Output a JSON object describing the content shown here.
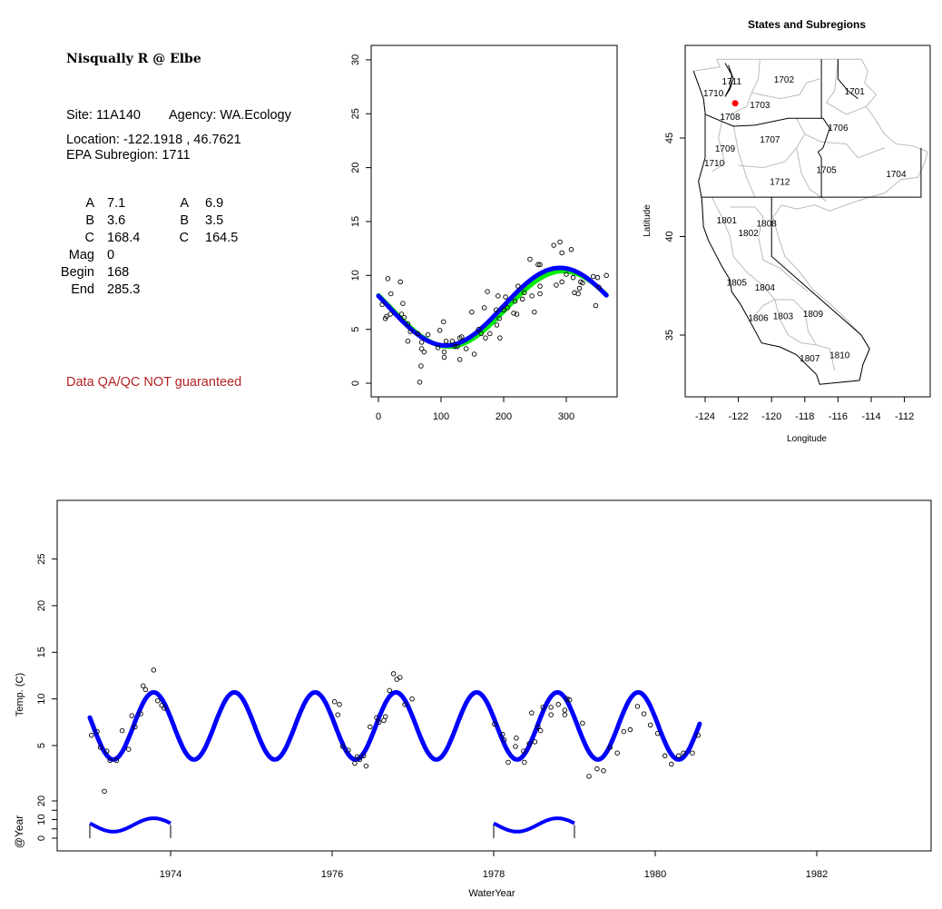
{
  "info": {
    "station_title": "Nisqually R @ Elbe",
    "site": "Site: 11A140",
    "agency": "Agency: WA.Ecology",
    "location": "Location: -122.1918 , 46.7621",
    "epa_subregion": "EPA Subregion: 1711",
    "params_left": [
      {
        "label": "A",
        "value": "7.1"
      },
      {
        "label": "B",
        "value": "3.6"
      },
      {
        "label": "C",
        "value": "168.4"
      },
      {
        "label": "Mag",
        "value": "0"
      },
      {
        "label": "Begin",
        "value": "168"
      },
      {
        "label": "End",
        "value": "285.3"
      }
    ],
    "params_right": [
      {
        "label": "A",
        "value": "6.9"
      },
      {
        "label": "B",
        "value": "3.5"
      },
      {
        "label": "C",
        "value": "164.5"
      }
    ],
    "disclaimer": "Data QA/QC NOT guaranteed",
    "disclaimer_color": "#b22222"
  },
  "chart_data": [
    {
      "id": "annual",
      "type": "scatter",
      "title": "",
      "xlabel": "",
      "ylabel": "",
      "xlim": [
        -12,
        370
      ],
      "ylim": [
        -1,
        31
      ],
      "xticks": [
        "0",
        "100",
        "200",
        "300"
      ],
      "yticks": [
        "0",
        "5",
        "10",
        "15",
        "20",
        "25",
        "30"
      ],
      "fits": [
        {
          "name": "green-fit",
          "color": "#00ee00",
          "mean": 6.9,
          "amplitude": 3.5,
          "peak_day": 295
        },
        {
          "name": "blue-fit",
          "color": "#0000ff",
          "mean": 7.1,
          "amplitude": 3.6,
          "peak_day": 290
        }
      ],
      "points": [
        [
          6,
          7.3
        ],
        [
          11,
          6.0
        ],
        [
          15,
          9.7
        ],
        [
          13,
          6.2
        ],
        [
          20,
          8.3
        ],
        [
          19,
          6.4
        ],
        [
          35,
          9.4
        ],
        [
          39,
          7.4
        ],
        [
          37,
          6.4
        ],
        [
          41,
          6.1
        ],
        [
          47,
          3.9
        ],
        [
          47,
          5.5
        ],
        [
          51,
          4.8
        ],
        [
          63,
          4.6
        ],
        [
          66,
          0.1
        ],
        [
          68,
          1.6
        ],
        [
          69,
          3.2
        ],
        [
          69,
          3.8
        ],
        [
          73,
          2.9
        ],
        [
          79,
          4.5
        ],
        [
          95,
          3.3
        ],
        [
          98,
          4.9
        ],
        [
          104,
          5.7
        ],
        [
          105,
          2.9
        ],
        [
          105,
          2.4
        ],
        [
          108,
          3.9
        ],
        [
          118,
          3.9
        ],
        [
          122,
          3.4
        ],
        [
          126,
          3.4
        ],
        [
          130,
          2.2
        ],
        [
          130,
          4.2
        ],
        [
          133,
          4.3
        ],
        [
          140,
          3.2
        ],
        [
          149,
          6.6
        ],
        [
          153,
          2.7
        ],
        [
          160,
          5.0
        ],
        [
          164,
          4.6
        ],
        [
          169,
          7.0
        ],
        [
          171,
          4.2
        ],
        [
          174,
          8.5
        ],
        [
          178,
          4.6
        ],
        [
          188,
          6.8
        ],
        [
          189,
          5.4
        ],
        [
          191,
          8.1
        ],
        [
          193,
          6.0
        ],
        [
          194,
          4.2
        ],
        [
          200,
          6.8
        ],
        [
          203,
          8.0
        ],
        [
          206,
          7.0
        ],
        [
          216,
          6.5
        ],
        [
          218,
          7.6
        ],
        [
          221,
          6.4
        ],
        [
          223,
          9.0
        ],
        [
          230,
          7.8
        ],
        [
          233,
          8.4
        ],
        [
          242,
          11.5
        ],
        [
          245,
          8.1
        ],
        [
          249,
          6.6
        ],
        [
          255,
          11.0
        ],
        [
          258,
          11.0
        ],
        [
          258,
          9.0
        ],
        [
          258,
          8.3
        ],
        [
          280,
          12.8
        ],
        [
          284,
          9.1
        ],
        [
          290,
          13.1
        ],
        [
          293,
          12.1
        ],
        [
          293,
          9.4
        ],
        [
          300,
          10.1
        ],
        [
          308,
          12.4
        ],
        [
          311,
          9.8
        ],
        [
          313,
          8.4
        ],
        [
          319,
          8.3
        ],
        [
          321,
          8.8
        ],
        [
          323,
          9.4
        ],
        [
          326,
          9.3
        ],
        [
          343,
          9.9
        ],
        [
          347,
          7.2
        ],
        [
          350,
          9.8
        ],
        [
          352,
          8.9
        ],
        [
          364,
          10.0
        ]
      ]
    },
    {
      "id": "timeseries",
      "type": "scatter",
      "title": "",
      "xlabel": "WaterYear",
      "ylabel": "Temp. (C)",
      "ylabel_inset": "@Year",
      "xticks": [
        "1974",
        "1976",
        "1978",
        "1980",
        "1982"
      ],
      "yticks": [
        "5",
        "10",
        "15",
        "20",
        "25"
      ],
      "inset_yticks": [
        "0",
        "10",
        "20"
      ],
      "fit": {
        "color": "#0000ff",
        "mean": 7.1,
        "amplitude": 3.6,
        "peak_phase": 0.79,
        "start": 1973.0,
        "end": 1980.55
      },
      "inset_years": [
        [
          1973,
          1974
        ],
        [
          1978,
          1979
        ]
      ],
      "points": [
        [
          1973.02,
          6.1
        ],
        [
          1973.09,
          6.5
        ],
        [
          1973.13,
          4.8
        ],
        [
          1973.21,
          4.4
        ],
        [
          1973.18,
          0.1
        ],
        [
          1973.25,
          3.4
        ],
        [
          1973.33,
          3.4
        ],
        [
          1973.4,
          6.6
        ],
        [
          1973.48,
          4.6
        ],
        [
          1973.52,
          8.2
        ],
        [
          1973.56,
          7.0
        ],
        [
          1973.63,
          8.4
        ],
        [
          1973.66,
          11.4
        ],
        [
          1973.69,
          11.0
        ],
        [
          1973.79,
          13.1
        ],
        [
          1973.84,
          9.8
        ],
        [
          1973.89,
          9.3
        ],
        [
          1973.92,
          9.0
        ],
        [
          1976.03,
          9.7
        ],
        [
          1976.07,
          8.3
        ],
        [
          1976.09,
          9.4
        ],
        [
          1976.13,
          4.9
        ],
        [
          1976.2,
          4.5
        ],
        [
          1976.28,
          3.1
        ],
        [
          1976.31,
          3.8
        ],
        [
          1976.34,
          3.5
        ],
        [
          1976.39,
          3.9
        ],
        [
          1976.42,
          2.8
        ],
        [
          1976.47,
          7.0
        ],
        [
          1976.55,
          8.0
        ],
        [
          1976.58,
          7.5
        ],
        [
          1976.64,
          7.7
        ],
        [
          1976.66,
          8.1
        ],
        [
          1976.71,
          10.9
        ],
        [
          1976.76,
          12.7
        ],
        [
          1976.8,
          12.1
        ],
        [
          1976.84,
          12.3
        ],
        [
          1976.9,
          9.4
        ],
        [
          1976.99,
          10.0
        ],
        [
          1978.01,
          7.3
        ],
        [
          1978.11,
          6.2
        ],
        [
          1978.13,
          5.6
        ],
        [
          1978.18,
          3.2
        ],
        [
          1978.27,
          4.9
        ],
        [
          1978.28,
          5.8
        ],
        [
          1978.37,
          4.4
        ],
        [
          1978.38,
          3.2
        ],
        [
          1978.44,
          5.2
        ],
        [
          1978.47,
          8.5
        ],
        [
          1978.51,
          5.4
        ],
        [
          1978.55,
          7.0
        ],
        [
          1978.58,
          6.6
        ],
        [
          1978.61,
          9.1
        ],
        [
          1978.71,
          9.1
        ],
        [
          1978.71,
          8.3
        ],
        [
          1978.8,
          9.4
        ],
        [
          1978.88,
          8.3
        ],
        [
          1978.88,
          8.8
        ],
        [
          1978.91,
          10.0
        ],
        [
          1978.94,
          9.9
        ],
        [
          1979.1,
          7.4
        ],
        [
          1979.18,
          1.7
        ],
        [
          1979.28,
          2.5
        ],
        [
          1979.36,
          2.3
        ],
        [
          1979.44,
          4.8
        ],
        [
          1979.53,
          4.2
        ],
        [
          1979.61,
          6.5
        ],
        [
          1979.69,
          6.7
        ],
        [
          1979.78,
          9.2
        ],
        [
          1979.86,
          8.4
        ],
        [
          1979.94,
          7.2
        ],
        [
          1980.03,
          6.3
        ],
        [
          1980.12,
          3.9
        ],
        [
          1980.2,
          3.0
        ],
        [
          1980.29,
          3.9
        ],
        [
          1980.35,
          4.2
        ],
        [
          1980.46,
          4.2
        ],
        [
          1980.53,
          6.1
        ]
      ]
    }
  ],
  "map": {
    "title": "States and Subregions",
    "xlabel": "Longitude",
    "ylabel": "Latitude",
    "xticks": [
      "-124",
      "-122",
      "-120",
      "-118",
      "-116",
      "-114",
      "-112"
    ],
    "yticks": [
      "35",
      "40",
      "45"
    ],
    "site_marker": {
      "lon": -122.1918,
      "lat": 46.7621,
      "color": "#ff0000"
    },
    "labels": [
      {
        "text": "1702",
        "lon": -119.25,
        "lat": 48.0
      },
      {
        "text": "1711",
        "lon": -122.4,
        "lat": 47.9
      },
      {
        "text": "1701",
        "lon": -115.0,
        "lat": 47.4
      },
      {
        "text": "1710",
        "lon": -123.5,
        "lat": 47.3
      },
      {
        "text": "1703",
        "lon": -120.7,
        "lat": 46.7
      },
      {
        "text": "1708",
        "lon": -122.5,
        "lat": 46.1
      },
      {
        "text": "1706",
        "lon": -116.0,
        "lat": 45.55
      },
      {
        "text": "1707",
        "lon": -120.1,
        "lat": 44.95
      },
      {
        "text": "1709",
        "lon": -122.8,
        "lat": 44.5
      },
      {
        "text": "1710",
        "lon": -123.45,
        "lat": 43.75
      },
      {
        "text": "1705",
        "lon": -116.7,
        "lat": 43.4
      },
      {
        "text": "1704",
        "lon": -112.5,
        "lat": 43.2
      },
      {
        "text": "1712",
        "lon": -119.5,
        "lat": 42.8
      },
      {
        "text": "1801",
        "lon": -122.7,
        "lat": 40.85
      },
      {
        "text": "1808",
        "lon": -120.3,
        "lat": 40.7
      },
      {
        "text": "1802",
        "lon": -121.4,
        "lat": 40.2
      },
      {
        "text": "1805",
        "lon": -122.1,
        "lat": 37.7
      },
      {
        "text": "1804",
        "lon": -120.4,
        "lat": 37.45
      },
      {
        "text": "1806",
        "lon": -120.8,
        "lat": 35.9
      },
      {
        "text": "1803",
        "lon": -119.3,
        "lat": 36.0
      },
      {
        "text": "1809",
        "lon": -117.5,
        "lat": 36.1
      },
      {
        "text": "1810",
        "lon": -115.9,
        "lat": 34.0
      },
      {
        "text": "1807",
        "lon": -117.7,
        "lat": 33.85
      }
    ]
  }
}
